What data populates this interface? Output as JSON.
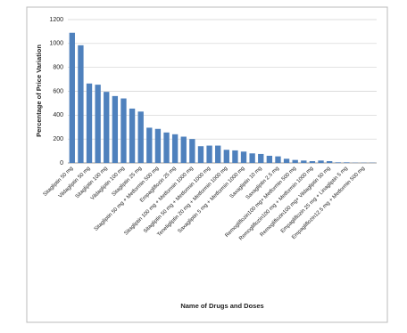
{
  "chart_data": {
    "type": "bar",
    "y_label": "Percentage of Price Variation",
    "x_label": "Name of Drugs and Doses",
    "categories": [
      "Sitagliptin 50 mg",
      null,
      "Vildagliptin 50 mg",
      null,
      "Sitagliptin 100 mg",
      null,
      "Vildagliptin 100 mg",
      null,
      "Sitagliptin 25 mg",
      null,
      "Sitagliptin 50 mg + Metformin 500 mg",
      null,
      "Empagliflozin 25 mg",
      null,
      "Sitagliptin 100 mg + Metformin 1000 mg",
      null,
      "Sitagliptin 50 mg + Metformin 1000 mg",
      null,
      "Teneligliptin 20 mg + Metformin 1000 mg",
      null,
      "Saxagliptin 5 mg + Metformin 1000 mg",
      null,
      "Saxagliptin 10 mg",
      null,
      "Saxagliptin 2.5 mg",
      null,
      "Remogliflozin100 mg+ Metformin 500 mg",
      null,
      "Remogliflozin100 mg + Metformin 1000 mg",
      null,
      "Remogliflozin100 mg+ Vildagliptin 50 mg",
      null,
      "Empagliflozin 25 mg + Linagliptin 5 mg",
      null,
      "Empagliflozin12.5 mg + Metformin 500 mg",
      null
    ],
    "values": [
      1090,
      985,
      665,
      655,
      595,
      560,
      540,
      455,
      430,
      295,
      285,
      255,
      240,
      220,
      200,
      140,
      145,
      145,
      110,
      105,
      95,
      80,
      75,
      60,
      55,
      35,
      25,
      20,
      15,
      20,
      15,
      5,
      5,
      2,
      2,
      2
    ],
    "color": "#4f81bd",
    "ylim": [
      0,
      1200
    ],
    "yticks": [
      0,
      200,
      400,
      600,
      800,
      1000,
      1200
    ],
    "grid": true
  }
}
